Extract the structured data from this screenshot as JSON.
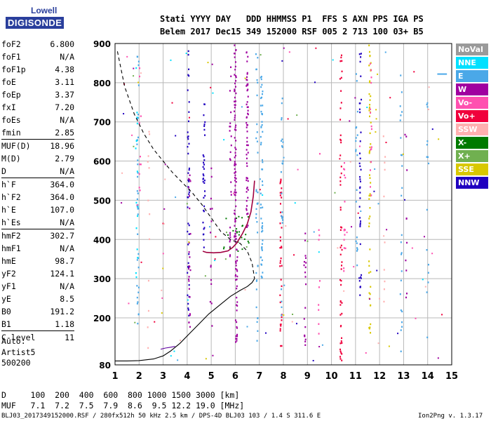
{
  "logo": {
    "top": "Lowell",
    "bottom": "DIGISONDE"
  },
  "header": {
    "line1": "Stati YYYY DAY   DDD HHMMSS P1  FFS S AXN PPS IGA PS",
    "line2": "Belem 2017 Dec15 349 152000 RSF 005 2 713 100 03+ B5"
  },
  "params": [
    {
      "label": "foF2",
      "value": "6.800"
    },
    {
      "label": "foF1",
      "value": "N/A"
    },
    {
      "label": "foF1p",
      "value": "4.38"
    },
    {
      "label": "foE",
      "value": "3.11"
    },
    {
      "label": "foEp",
      "value": "3.37"
    },
    {
      "label": "fxI",
      "value": "7.20"
    },
    {
      "label": "foEs",
      "value": "N/A"
    },
    {
      "label": "fmin",
      "value": "2.85",
      "sep": true
    },
    {
      "label": "MUF(D)",
      "value": "18.96"
    },
    {
      "label": "M(D)",
      "value": "2.79"
    },
    {
      "label": "D",
      "value": "N/A",
      "sep": true
    },
    {
      "label": "h`F",
      "value": "364.0"
    },
    {
      "label": "h`F2",
      "value": "364.0"
    },
    {
      "label": "h`E",
      "value": "107.0"
    },
    {
      "label": "h`Es",
      "value": "N/A",
      "sep": true
    },
    {
      "label": "hmF2",
      "value": "302.7"
    },
    {
      "label": "hmF1",
      "value": "N/A"
    },
    {
      "label": "hmE",
      "value": "98.7"
    },
    {
      "label": "yF2",
      "value": "124.1"
    },
    {
      "label": "yF1",
      "value": "N/A"
    },
    {
      "label": "yE",
      "value": "8.5"
    },
    {
      "label": "B0",
      "value": "191.2"
    },
    {
      "label": "B1",
      "value": "1.18",
      "sep": true
    },
    {
      "label": "C-level",
      "value": "11",
      "sep": true
    }
  ],
  "auto": {
    "line1": "Auto:",
    "line2": "Artist5",
    "line3": "500200"
  },
  "legend": [
    {
      "label": "NoVal",
      "color": "#9a9a9a"
    },
    {
      "label": "NNE",
      "color": "#00e0ff"
    },
    {
      "label": "E",
      "color": "#4aa8e8"
    },
    {
      "label": "W",
      "color": "#a000a0"
    },
    {
      "label": "Vo-",
      "color": "#ff50b0"
    },
    {
      "label": "Vo+",
      "color": "#f0003c"
    },
    {
      "label": "SSW",
      "color": "#ffb0b0"
    },
    {
      "label": "X-",
      "color": "#007a00"
    },
    {
      "label": "X+",
      "color": "#70b050"
    },
    {
      "label": "SSE",
      "color": "#d8c800"
    },
    {
      "label": "NNW",
      "color": "#2000c0"
    }
  ],
  "footer": {
    "d_row": "D     100  200  400  600  800 1000 1500 3000 [km]",
    "muf_row": "MUF   7.1  7.2  7.5  7.9  8.6  9.5 12.2 19.0 [MHz]",
    "file": "BLJ03_2017349152000.RSF / 280fx512h 50 kHz 2.5 km / DPS-4D BLJ03 103 / 1.4 S 311.6 E",
    "version": "Ion2Png v. 1.3.17"
  },
  "chart_data": {
    "type": "scatter",
    "x_ticks": [
      1,
      2,
      3,
      4,
      5,
      6,
      7,
      8,
      9,
      10,
      11,
      12,
      13,
      14,
      15
    ],
    "y_ticks": [
      80,
      200,
      300,
      400,
      500,
      600,
      700,
      800,
      900
    ],
    "xlim": [
      1,
      15
    ],
    "ylim": [
      80,
      900
    ],
    "grid": true,
    "series": [
      {
        "name": "profile_dashed",
        "style": "dashed",
        "color": "#000000",
        "x": [
          1.1,
          1.4,
          1.8,
          2.2,
          2.6,
          3.0,
          3.4,
          3.8,
          4.2,
          4.6,
          5.0,
          5.4,
          5.8,
          6.2,
          6.5,
          6.7,
          6.8
        ],
        "y": [
          880,
          790,
          720,
          670,
          630,
          600,
          570,
          545,
          520,
          490,
          455,
          420,
          400,
          390,
          370,
          340,
          300
        ]
      },
      {
        "name": "profile_solid",
        "style": "solid",
        "color": "#000000",
        "x": [
          1.0,
          1.5,
          2.0,
          2.6,
          3.0,
          3.3,
          3.7,
          4.1,
          4.5,
          4.9,
          5.4,
          5.8,
          6.2,
          6.5,
          6.7,
          6.8
        ],
        "y": [
          90,
          90,
          91,
          95,
          103,
          115,
          135,
          160,
          185,
          210,
          235,
          255,
          270,
          280,
          290,
          300
        ]
      },
      {
        "name": "trace_O",
        "style": "solid",
        "color": "#a00040",
        "x": [
          4.65,
          4.8,
          5.1,
          5.4,
          5.7,
          5.9,
          6.05,
          6.15,
          6.3,
          6.5,
          6.65,
          6.75,
          6.8
        ],
        "y": [
          370,
          367,
          366,
          367,
          371,
          380,
          390,
          400,
          415,
          440,
          470,
          510,
          550
        ]
      },
      {
        "name": "trace_low",
        "style": "solid",
        "color": "#6000a0",
        "x": [
          2.9,
          3.1,
          3.3,
          3.5
        ],
        "y": [
          120,
          123,
          125,
          127
        ]
      }
    ]
  }
}
